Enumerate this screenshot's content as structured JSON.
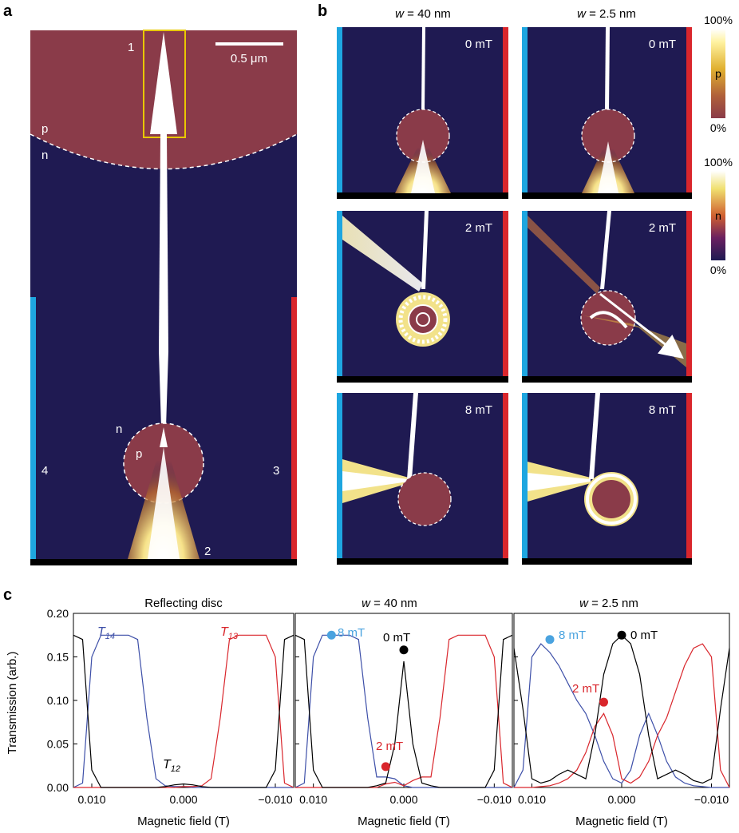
{
  "panel_labels": {
    "a": "a",
    "b": "b",
    "c": "c"
  },
  "panel_a": {
    "scale_bar": "0.5 μm",
    "region_p": "p",
    "region_n": "n",
    "disc_n": "n",
    "disc_p": "p",
    "lead_1": "1",
    "lead_2": "2",
    "lead_3": "3",
    "lead_4": "4",
    "colors": {
      "p_region": "#8a3b49",
      "n_region": "#1f1a52",
      "lead_left": "#1ea6e0",
      "lead_right": "#d9262c",
      "box": "#e8c800"
    }
  },
  "panel_b": {
    "col_titles": [
      "w = 40 nm",
      "w = 2.5 nm"
    ],
    "w_symbol": "w",
    "col_values": [
      " = 40 nm",
      " = 2.5 nm"
    ],
    "fields": [
      "0 mT",
      "2 mT",
      "8 mT"
    ],
    "colorbar_p": {
      "top": "100%",
      "label": "p",
      "bottom": "0%"
    },
    "colorbar_n": {
      "top": "100%",
      "label": "n",
      "bottom": "0%"
    }
  },
  "panel_c": {
    "titles": [
      "Reflecting disc",
      "w = 40 nm",
      "w = 2.5 nm"
    ],
    "ylabel": "Transmission (arb.)",
    "xlabel": "Magnetic field (T)",
    "yticks": [
      "0.00",
      "0.05",
      "0.10",
      "0.15",
      "0.20"
    ],
    "xticks": [
      "0.010",
      "0.000",
      "−0.010"
    ],
    "legend": {
      "T14": "T",
      "T14_sub": "14",
      "T13": "T",
      "T13_sub": "13",
      "T12": "T",
      "T12_sub": "12"
    },
    "markers": {
      "m8": "8 mT",
      "m0": "0 mT",
      "m2": "2 mT"
    },
    "colors": {
      "T14": "#3d4fa8",
      "T13": "#d9262c",
      "T12": "#000000",
      "m8": "#4aa3df",
      "m2": "#d9262c",
      "m0": "#000000"
    }
  },
  "chart_data": [
    {
      "type": "line",
      "title": "Reflecting disc",
      "xlabel": "Magnetic field (T)",
      "ylabel": "Transmission (arb.)",
      "xlim": [
        0.012,
        -0.012
      ],
      "ylim": [
        0,
        0.2
      ],
      "x": [
        0.012,
        0.011,
        0.01,
        0.009,
        0.008,
        0.007,
        0.006,
        0.005,
        0.004,
        0.003,
        0.002,
        0.001,
        0.0,
        -0.001,
        -0.002,
        -0.003,
        -0.004,
        -0.005,
        -0.006,
        -0.007,
        -0.008,
        -0.009,
        -0.01,
        -0.011,
        -0.012
      ],
      "series": [
        {
          "name": "T14",
          "values": [
            0.0,
            0.005,
            0.15,
            0.175,
            0.175,
            0.175,
            0.175,
            0.17,
            0.08,
            0.01,
            0.002,
            0.001,
            0.001,
            0.0,
            0.0,
            0.0,
            0.0,
            0.0,
            0.0,
            0.0,
            0.0,
            0.0,
            0.0,
            0.0,
            0.0
          ]
        },
        {
          "name": "T13",
          "values": [
            0.0,
            0.0,
            0.0,
            0.0,
            0.0,
            0.0,
            0.0,
            0.0,
            0.0,
            0.0,
            0.0,
            0.0,
            0.001,
            0.001,
            0.002,
            0.01,
            0.08,
            0.17,
            0.175,
            0.175,
            0.175,
            0.175,
            0.15,
            0.005,
            0.0
          ]
        },
        {
          "name": "T12",
          "values": [
            0.175,
            0.17,
            0.02,
            0.0,
            0.0,
            0.0,
            0.0,
            0.0,
            0.0,
            0.0,
            0.001,
            0.003,
            0.004,
            0.003,
            0.001,
            0.0,
            0.0,
            0.0,
            0.0,
            0.0,
            0.0,
            0.0,
            0.02,
            0.17,
            0.175
          ]
        }
      ]
    },
    {
      "type": "line",
      "title": "w = 40 nm",
      "xlabel": "Magnetic field (T)",
      "xlim": [
        0.012,
        -0.012
      ],
      "ylim": [
        0,
        0.2
      ],
      "x": [
        0.012,
        0.011,
        0.01,
        0.009,
        0.008,
        0.007,
        0.006,
        0.005,
        0.004,
        0.003,
        0.002,
        0.001,
        0.0,
        -0.001,
        -0.002,
        -0.003,
        -0.004,
        -0.005,
        -0.006,
        -0.007,
        -0.008,
        -0.009,
        -0.01,
        -0.011,
        -0.012
      ],
      "series": [
        {
          "name": "T14",
          "values": [
            0.0,
            0.005,
            0.15,
            0.175,
            0.175,
            0.175,
            0.175,
            0.17,
            0.08,
            0.012,
            0.012,
            0.01,
            0.002,
            0.0,
            0.0,
            0.0,
            0.0,
            0.0,
            0.0,
            0.0,
            0.0,
            0.0,
            0.0,
            0.0,
            0.0
          ]
        },
        {
          "name": "T13",
          "values": [
            0.0,
            0.0,
            0.0,
            0.0,
            0.0,
            0.0,
            0.0,
            0.0,
            0.0,
            0.0,
            0.004,
            0.006,
            0.002,
            0.008,
            0.012,
            0.012,
            0.08,
            0.17,
            0.175,
            0.175,
            0.175,
            0.175,
            0.15,
            0.005,
            0.0
          ]
        },
        {
          "name": "T12",
          "values": [
            0.175,
            0.17,
            0.02,
            0.0,
            0.0,
            0.0,
            0.0,
            0.0,
            0.0,
            0.002,
            0.005,
            0.05,
            0.145,
            0.05,
            0.005,
            0.002,
            0.0,
            0.0,
            0.0,
            0.0,
            0.0,
            0.0,
            0.02,
            0.17,
            0.175
          ]
        }
      ],
      "markers": [
        {
          "label": "8 mT",
          "x": 0.008,
          "y": 0.175
        },
        {
          "label": "0 mT",
          "x": 0.0,
          "y": 0.158
        },
        {
          "label": "2 mT",
          "x": 0.002,
          "y": 0.024
        }
      ]
    },
    {
      "type": "line",
      "title": "w = 2.5 nm",
      "xlabel": "Magnetic field (T)",
      "xlim": [
        0.012,
        -0.012
      ],
      "ylim": [
        0,
        0.2
      ],
      "x": [
        0.012,
        0.011,
        0.01,
        0.009,
        0.008,
        0.007,
        0.006,
        0.005,
        0.004,
        0.003,
        0.002,
        0.001,
        0.0,
        -0.001,
        -0.002,
        -0.003,
        -0.004,
        -0.005,
        -0.006,
        -0.007,
        -0.008,
        -0.009,
        -0.01,
        -0.011,
        -0.012
      ],
      "series": [
        {
          "name": "T14",
          "values": [
            0.0,
            0.02,
            0.15,
            0.165,
            0.155,
            0.14,
            0.12,
            0.1,
            0.085,
            0.06,
            0.03,
            0.01,
            0.005,
            0.02,
            0.06,
            0.085,
            0.06,
            0.03,
            0.012,
            0.005,
            0.002,
            0.001,
            0.0,
            0.0,
            0.0
          ]
        },
        {
          "name": "T13",
          "values": [
            0.0,
            0.0,
            0.0,
            0.001,
            0.002,
            0.005,
            0.01,
            0.02,
            0.04,
            0.07,
            0.085,
            0.06,
            0.01,
            0.005,
            0.012,
            0.03,
            0.06,
            0.08,
            0.11,
            0.14,
            0.16,
            0.165,
            0.15,
            0.02,
            0.0
          ]
        },
        {
          "name": "T12",
          "values": [
            0.16,
            0.09,
            0.01,
            0.005,
            0.008,
            0.015,
            0.02,
            0.015,
            0.01,
            0.06,
            0.13,
            0.165,
            0.175,
            0.165,
            0.13,
            0.06,
            0.01,
            0.015,
            0.02,
            0.015,
            0.008,
            0.005,
            0.01,
            0.09,
            0.16
          ]
        }
      ],
      "markers": [
        {
          "label": "8 mT",
          "x": 0.008,
          "y": 0.17
        },
        {
          "label": "0 mT",
          "x": 0.0,
          "y": 0.175
        },
        {
          "label": "2 mT",
          "x": 0.002,
          "y": 0.098
        }
      ]
    }
  ]
}
